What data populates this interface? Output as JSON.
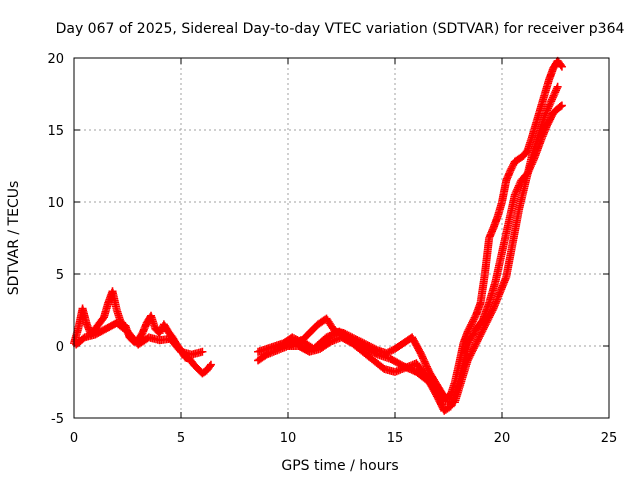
{
  "chart_data": {
    "type": "scatter",
    "title": "Day 067 of 2025, Sidereal Day-to-day VTEC variation (SDTVAR) for receiver p364",
    "xlabel": "GPS time / hours",
    "ylabel": "SDTVAR / TECUs",
    "xlim": [
      0,
      25
    ],
    "ylim": [
      -5,
      20
    ],
    "xticks": [
      0,
      5,
      10,
      15,
      20,
      25
    ],
    "yticks": [
      -5,
      0,
      5,
      10,
      15,
      20
    ],
    "xtick_labels": [
      "0",
      "5",
      "10",
      "15",
      "20",
      "25"
    ],
    "ytick_labels": [
      "-5",
      "0",
      "5",
      "10",
      "15",
      "20"
    ],
    "grid": true,
    "marker": "+",
    "color": "#ff0000",
    "series": [
      {
        "name": "segment-early",
        "x": [
          0.0,
          0.2,
          0.4,
          0.6,
          0.8,
          1.0,
          1.2,
          1.4,
          1.6,
          1.8,
          2.0,
          2.2,
          2.4,
          2.6,
          2.8,
          3.0,
          3.2,
          3.4,
          3.6,
          3.8,
          4.0,
          4.2,
          4.4,
          4.6,
          4.8,
          5.0,
          5.2,
          5.4,
          5.6,
          5.8,
          6.0,
          6.2,
          6.4
        ],
        "y": [
          0.2,
          1.2,
          2.6,
          1.5,
          0.8,
          1.2,
          1.6,
          2.0,
          3.0,
          3.8,
          2.5,
          1.6,
          1.4,
          0.6,
          0.3,
          0.4,
          0.9,
          1.6,
          2.1,
          1.2,
          0.9,
          1.5,
          1.0,
          0.6,
          0.1,
          -0.3,
          -0.8,
          -0.9,
          -1.3,
          -1.6,
          -1.9,
          -1.7,
          -1.3
        ]
      },
      {
        "name": "segment-early-lower",
        "x": [
          0.1,
          0.5,
          1.0,
          1.5,
          2.0,
          2.5,
          3.0,
          3.5,
          4.0,
          4.5,
          5.0,
          5.5,
          6.0
        ],
        "y": [
          0.1,
          0.6,
          0.8,
          1.2,
          1.6,
          1.0,
          0.1,
          0.6,
          0.4,
          0.5,
          -0.4,
          -0.6,
          -0.4
        ]
      },
      {
        "name": "segment-late-upper",
        "x": [
          8.6,
          9.0,
          9.4,
          9.8,
          10.2,
          10.6,
          11.0,
          11.4,
          11.8,
          12.2,
          12.6,
          13.0,
          13.4,
          13.8,
          14.2,
          14.6,
          15.0,
          15.4,
          15.8,
          16.2,
          16.6,
          17.0,
          17.2,
          17.4,
          17.6,
          17.8,
          18.0,
          18.2,
          18.4,
          18.6,
          18.8,
          19.0,
          19.2,
          19.4,
          19.6,
          19.8,
          20.0,
          20.2,
          20.4,
          20.6,
          20.8,
          21.0,
          21.2,
          21.4,
          21.6,
          21.8,
          22.0,
          22.2,
          22.4,
          22.6,
          22.8
        ],
        "y": [
          -0.4,
          -0.2,
          0.0,
          0.2,
          0.6,
          0.3,
          0.9,
          1.5,
          1.9,
          1.0,
          0.9,
          0.6,
          0.3,
          0.0,
          -0.3,
          -0.5,
          -0.2,
          0.2,
          0.6,
          -0.5,
          -1.8,
          -2.8,
          -3.3,
          -3.6,
          -3.4,
          -2.5,
          -1.2,
          0.2,
          1.0,
          1.6,
          2.2,
          3.0,
          5.0,
          7.5,
          8.2,
          9.0,
          10.0,
          11.5,
          12.2,
          12.8,
          13.0,
          13.2,
          13.6,
          14.5,
          15.5,
          16.5,
          17.5,
          18.5,
          19.3,
          19.8,
          19.4
        ]
      },
      {
        "name": "segment-late-lower",
        "x": [
          8.6,
          9.0,
          9.5,
          10.0,
          10.5,
          11.0,
          11.5,
          12.0,
          12.5,
          13.0,
          13.5,
          14.0,
          14.5,
          15.0,
          15.5,
          16.0,
          16.5,
          17.0,
          17.3,
          17.6,
          17.9,
          18.2,
          18.5,
          18.8,
          19.1,
          19.4,
          19.7,
          20.0,
          20.3,
          20.6,
          20.9,
          21.2,
          21.5,
          21.8,
          22.1,
          22.4,
          22.7,
          22.8
        ],
        "y": [
          -1.0,
          -0.6,
          -0.3,
          0.0,
          0.0,
          -0.4,
          -0.2,
          0.3,
          0.6,
          0.2,
          -0.4,
          -1.0,
          -1.6,
          -1.8,
          -1.5,
          -1.2,
          -2.2,
          -3.6,
          -4.5,
          -4.2,
          -3.0,
          -1.2,
          0.4,
          1.2,
          1.8,
          3.0,
          4.5,
          6.5,
          8.5,
          10.5,
          11.5,
          12.0,
          13.0,
          14.2,
          15.3,
          16.2,
          16.6,
          16.7
        ]
      },
      {
        "name": "segment-late-mid",
        "x": [
          10.0,
          10.6,
          11.2,
          11.8,
          12.4,
          13.0,
          13.6,
          14.2,
          14.8,
          15.4,
          16.0,
          16.6,
          17.2,
          17.8,
          18.4,
          19.0,
          19.6,
          20.2,
          20.8,
          21.4,
          22.0,
          22.6
        ],
        "y": [
          0.0,
          0.4,
          -0.2,
          0.6,
          1.0,
          0.4,
          -0.1,
          -0.6,
          -0.9,
          -1.4,
          -1.8,
          -2.5,
          -3.8,
          -3.9,
          -1.0,
          0.8,
          2.6,
          4.8,
          9.5,
          13.2,
          16.0,
          18.0
        ]
      }
    ]
  }
}
